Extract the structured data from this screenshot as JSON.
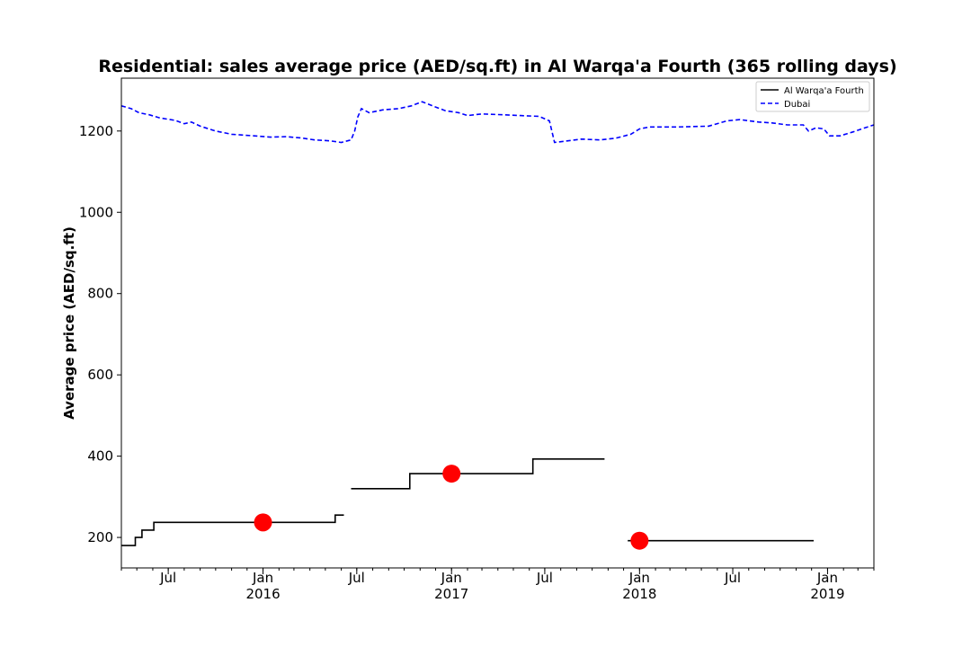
{
  "chart_data": {
    "type": "line",
    "title": "Residential: sales average price (AED/sq.ft) in Al Warqa'a Fourth (365 rolling days)",
    "ylabel": "Average price (AED/sq.ft)",
    "xlabel": "",
    "xlim": [
      "2015-04-01",
      "2019-04-01"
    ],
    "ylim": [
      125,
      1330
    ],
    "yticks": [
      200,
      400,
      600,
      800,
      1000,
      1200
    ],
    "xticks_major": [
      {
        "date": "2015-07-01",
        "label": "Jul"
      },
      {
        "date": "2016-01-01",
        "label": "Jan\n2016"
      },
      {
        "date": "2016-07-01",
        "label": "Jul"
      },
      {
        "date": "2017-01-01",
        "label": "Jan\n2017"
      },
      {
        "date": "2017-07-01",
        "label": "Jul"
      },
      {
        "date": "2018-01-01",
        "label": "Jan\n2018"
      },
      {
        "date": "2018-07-01",
        "label": "Jul"
      },
      {
        "date": "2019-01-01",
        "label": "Jan\n2019"
      }
    ],
    "legend_position": "top-right",
    "grid": false,
    "series": [
      {
        "name": "Al Warqa'a Fourth",
        "color": "#000000",
        "style": "solid-step",
        "segments": [
          [
            [
              "2015-04-01",
              180
            ],
            [
              "2015-04-28",
              180
            ],
            [
              "2015-04-28",
              200
            ],
            [
              "2015-05-11",
              200
            ],
            [
              "2015-05-11",
              218
            ],
            [
              "2015-06-03",
              218
            ],
            [
              "2015-06-03",
              237
            ],
            [
              "2016-05-20",
              237
            ],
            [
              "2016-05-20",
              255
            ],
            [
              "2016-06-06",
              255
            ]
          ],
          [
            [
              "2016-06-20",
              320
            ],
            [
              "2016-10-12",
              320
            ],
            [
              "2016-10-12",
              357
            ],
            [
              "2017-06-08",
              357
            ],
            [
              "2017-06-08",
              393
            ],
            [
              "2017-10-25",
              393
            ]
          ],
          [
            [
              "2017-12-09",
              192
            ],
            [
              "2018-12-05",
              192
            ]
          ]
        ]
      },
      {
        "name": "Dubai",
        "color": "#0000ff",
        "style": "dashed",
        "points": [
          [
            "2015-04-01",
            1262
          ],
          [
            "2015-04-20",
            1255
          ],
          [
            "2015-05-05",
            1245
          ],
          [
            "2015-05-25",
            1240
          ],
          [
            "2015-06-15",
            1232
          ],
          [
            "2015-07-15",
            1226
          ],
          [
            "2015-08-01",
            1218
          ],
          [
            "2015-08-15",
            1222
          ],
          [
            "2015-09-01",
            1212
          ],
          [
            "2015-10-01",
            1200
          ],
          [
            "2015-11-01",
            1192
          ],
          [
            "2015-12-15",
            1188
          ],
          [
            "2016-01-15",
            1185
          ],
          [
            "2016-02-15",
            1186
          ],
          [
            "2016-03-15",
            1183
          ],
          [
            "2016-04-10",
            1178
          ],
          [
            "2016-05-10",
            1176
          ],
          [
            "2016-06-01",
            1172
          ],
          [
            "2016-06-20",
            1178
          ],
          [
            "2016-06-27",
            1200
          ],
          [
            "2016-07-03",
            1235
          ],
          [
            "2016-07-10",
            1255
          ],
          [
            "2016-07-25",
            1245
          ],
          [
            "2016-08-20",
            1252
          ],
          [
            "2016-09-20",
            1255
          ],
          [
            "2016-10-15",
            1262
          ],
          [
            "2016-11-05",
            1272
          ],
          [
            "2016-11-25",
            1262
          ],
          [
            "2016-12-20",
            1250
          ],
          [
            "2017-01-15",
            1245
          ],
          [
            "2017-02-01",
            1238
          ],
          [
            "2017-03-01",
            1242
          ],
          [
            "2017-04-10",
            1240
          ],
          [
            "2017-05-15",
            1238
          ],
          [
            "2017-06-20",
            1236
          ],
          [
            "2017-07-10",
            1225
          ],
          [
            "2017-07-20",
            1172
          ],
          [
            "2017-08-10",
            1175
          ],
          [
            "2017-09-10",
            1180
          ],
          [
            "2017-10-15",
            1178
          ],
          [
            "2017-11-15",
            1182
          ],
          [
            "2017-12-15",
            1192
          ],
          [
            "2018-01-01",
            1205
          ],
          [
            "2018-01-20",
            1210
          ],
          [
            "2018-03-15",
            1210
          ],
          [
            "2018-05-15",
            1212
          ],
          [
            "2018-06-20",
            1225
          ],
          [
            "2018-07-15",
            1228
          ],
          [
            "2018-08-20",
            1222
          ],
          [
            "2018-09-15",
            1220
          ],
          [
            "2018-10-15",
            1215
          ],
          [
            "2018-11-15",
            1215
          ],
          [
            "2018-11-25",
            1200
          ],
          [
            "2018-12-10",
            1208
          ],
          [
            "2018-12-25",
            1205
          ],
          [
            "2019-01-05",
            1188
          ],
          [
            "2019-01-25",
            1188
          ],
          [
            "2019-02-20",
            1198
          ],
          [
            "2019-03-10",
            1206
          ],
          [
            "2019-04-01",
            1215
          ]
        ]
      }
    ],
    "markers": [
      {
        "date": "2016-01-01",
        "value": 237,
        "color": "#ff0000"
      },
      {
        "date": "2017-01-01",
        "value": 357,
        "color": "#ff0000"
      },
      {
        "date": "2018-01-01",
        "value": 192,
        "color": "#ff0000"
      }
    ]
  }
}
